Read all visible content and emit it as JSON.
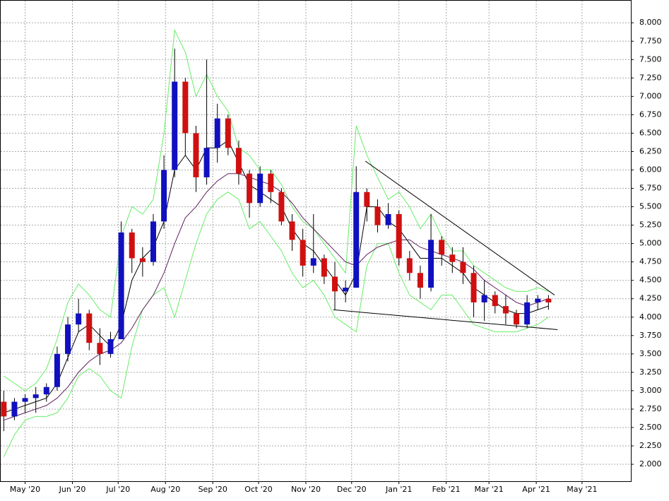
{
  "chart_data": {
    "type": "candlestick",
    "x": [
      -14,
      -7,
      0,
      7,
      14,
      21,
      28,
      35,
      42,
      49,
      56,
      63,
      70,
      77,
      84,
      91,
      98,
      105,
      112,
      119,
      126,
      133,
      140,
      147,
      154,
      161,
      168,
      175,
      182,
      189,
      196,
      203,
      210,
      217,
      224,
      231,
      238,
      245,
      252,
      259,
      266,
      273,
      280,
      287,
      294,
      301,
      308,
      315,
      322,
      329,
      336,
      343
    ],
    "open": [
      2.85,
      2.65,
      2.85,
      2.9,
      2.95,
      3.05,
      3.5,
      3.9,
      4.05,
      3.65,
      3.5,
      3.7,
      5.15,
      4.8,
      4.75,
      5.3,
      6.0,
      7.2,
      6.5,
      5.9,
      6.3,
      6.7,
      6.3,
      5.95,
      5.55,
      5.95,
      5.7,
      5.3,
      5.05,
      4.7,
      4.8,
      4.55,
      4.35,
      4.4,
      5.7,
      5.5,
      5.25,
      5.4,
      4.8,
      4.6,
      4.4,
      5.05,
      4.85,
      4.75,
      4.6,
      4.2,
      4.3,
      4.15,
      4.05,
      3.9,
      4.2,
      4.25
    ],
    "high": [
      3.0,
      2.9,
      2.95,
      3.05,
      3.1,
      3.6,
      4.0,
      4.25,
      4.1,
      3.85,
      3.8,
      5.3,
      5.2,
      4.95,
      5.4,
      6.2,
      7.65,
      7.25,
      6.6,
      7.5,
      6.9,
      6.75,
      6.4,
      6.0,
      6.05,
      6.0,
      5.75,
      5.4,
      5.2,
      5.4,
      4.85,
      4.75,
      4.5,
      6.05,
      5.75,
      5.6,
      5.55,
      5.45,
      4.9,
      4.7,
      5.4,
      5.1,
      4.95,
      4.95,
      4.7,
      4.5,
      4.35,
      4.3,
      4.1,
      4.3,
      4.3,
      4.3
    ],
    "low": [
      2.45,
      2.6,
      2.7,
      2.7,
      2.85,
      3.0,
      3.4,
      3.8,
      3.55,
      3.35,
      3.45,
      3.7,
      4.6,
      4.55,
      4.7,
      5.2,
      5.9,
      6.2,
      5.7,
      5.8,
      6.1,
      6.2,
      5.8,
      5.35,
      5.5,
      5.55,
      5.25,
      4.9,
      4.55,
      4.6,
      4.45,
      4.1,
      4.2,
      4.4,
      5.3,
      5.15,
      5.2,
      4.7,
      4.5,
      4.25,
      4.35,
      4.7,
      4.6,
      4.45,
      4.0,
      3.95,
      4.05,
      3.9,
      3.85,
      3.85,
      4.1,
      4.1
    ],
    "close": [
      2.65,
      2.85,
      2.9,
      2.95,
      3.05,
      3.5,
      3.9,
      4.05,
      3.65,
      3.5,
      3.7,
      5.15,
      4.8,
      4.75,
      5.3,
      6.0,
      7.2,
      6.5,
      5.9,
      6.3,
      6.7,
      6.3,
      5.95,
      5.55,
      5.95,
      5.7,
      5.3,
      5.05,
      4.7,
      4.8,
      4.55,
      4.35,
      4.4,
      5.7,
      5.5,
      5.25,
      5.4,
      4.8,
      4.6,
      4.4,
      5.05,
      4.85,
      4.75,
      4.6,
      4.2,
      4.3,
      4.15,
      4.05,
      3.9,
      4.2,
      4.25,
      4.2
    ],
    "up_color": "#1010c0",
    "down_color": "#d01010",
    "overlays": [
      {
        "color": "#66ee66",
        "values": [
          3.2,
          3.1,
          3.0,
          3.1,
          3.3,
          3.7,
          4.2,
          4.45,
          4.3,
          4.1,
          4.0,
          5.1,
          5.5,
          5.4,
          5.6,
          6.5,
          7.9,
          7.6,
          7.0,
          7.3,
          7.0,
          6.8,
          6.3,
          6.2,
          6.0,
          6.0,
          5.8,
          5.5,
          5.3,
          5.2,
          5.0,
          4.8,
          4.6,
          6.6,
          6.2,
          5.9,
          5.6,
          5.7,
          5.5,
          5.2,
          5.4,
          5.1,
          4.9,
          4.9,
          4.7,
          4.6,
          4.5,
          4.4,
          4.35,
          4.35,
          4.4,
          4.35
        ]
      },
      {
        "color": "#66ee66",
        "values": [
          2.1,
          2.4,
          2.6,
          2.65,
          2.65,
          2.7,
          2.9,
          3.2,
          3.3,
          3.2,
          3.0,
          2.9,
          3.6,
          4.1,
          4.3,
          4.4,
          4.0,
          4.5,
          5.0,
          5.4,
          5.6,
          5.7,
          5.6,
          5.2,
          5.3,
          5.1,
          4.9,
          4.6,
          4.4,
          4.5,
          4.3,
          4.0,
          3.9,
          3.8,
          4.7,
          5.0,
          5.0,
          4.6,
          4.3,
          4.2,
          4.1,
          4.3,
          4.3,
          4.1,
          3.9,
          3.85,
          3.8,
          3.8,
          3.8,
          3.85,
          3.9,
          4.0
        ]
      },
      {
        "color": "#000000",
        "values": [
          2.7,
          2.75,
          2.8,
          2.85,
          2.9,
          3.1,
          3.45,
          3.8,
          3.9,
          3.75,
          3.6,
          3.9,
          4.5,
          4.8,
          4.95,
          5.3,
          6.0,
          6.2,
          6.0,
          6.3,
          6.3,
          6.4,
          6.1,
          5.8,
          5.7,
          5.6,
          5.5,
          5.2,
          5.0,
          4.9,
          4.7,
          4.5,
          4.3,
          4.6,
          5.5,
          5.5,
          5.3,
          5.2,
          5.0,
          4.8,
          4.8,
          4.8,
          4.7,
          4.6,
          4.4,
          4.3,
          4.2,
          4.1,
          4.05,
          4.05,
          4.1,
          4.15
        ]
      },
      {
        "color": "#602060",
        "values": [
          2.6,
          2.65,
          2.7,
          2.75,
          2.8,
          2.9,
          3.05,
          3.25,
          3.4,
          3.5,
          3.55,
          3.65,
          3.85,
          4.1,
          4.3,
          4.6,
          5.0,
          5.35,
          5.5,
          5.7,
          5.85,
          5.95,
          5.95,
          5.9,
          5.85,
          5.8,
          5.7,
          5.55,
          5.35,
          5.2,
          5.05,
          4.9,
          4.75,
          4.7,
          4.85,
          4.95,
          5.0,
          5.05,
          5.05,
          4.95,
          4.9,
          4.85,
          4.8,
          4.75,
          4.65,
          4.5,
          4.4,
          4.3,
          4.2,
          4.15,
          4.2,
          4.25
        ]
      }
    ],
    "trendlines": [
      {
        "x": [
          223,
          347
        ],
        "y": [
          6.12,
          4.3
        ]
      },
      {
        "x": [
          202,
          349
        ],
        "y": [
          4.1,
          3.83
        ]
      }
    ],
    "xlim": [
      -16,
      397
    ],
    "ylim": [
      1.77,
      8.3
    ],
    "xticks": [
      {
        "value": 0,
        "label": "May '20"
      },
      {
        "value": 31,
        "label": "Jun '20"
      },
      {
        "value": 61,
        "label": "Jul '20"
      },
      {
        "value": 92,
        "label": "Aug '20"
      },
      {
        "value": 123,
        "label": "Sep '20"
      },
      {
        "value": 153,
        "label": "Oct '20"
      },
      {
        "value": 184,
        "label": "Nov '20"
      },
      {
        "value": 214,
        "label": "Dec '20"
      },
      {
        "value": 245,
        "label": "Jan '21"
      },
      {
        "value": 276,
        "label": "Feb '21"
      },
      {
        "value": 304,
        "label": "Mar '21"
      },
      {
        "value": 335,
        "label": "Apr '21"
      },
      {
        "value": 365,
        "label": "May '21"
      }
    ],
    "yticks": [
      {
        "value": 2,
        "label": "2.000"
      },
      {
        "value": 2.25,
        "label": "2.250"
      },
      {
        "value": 2.5,
        "label": "2.500"
      },
      {
        "value": 2.75,
        "label": "2.750"
      },
      {
        "value": 3,
        "label": "3.000"
      },
      {
        "value": 3.25,
        "label": "3.250"
      },
      {
        "value": 3.5,
        "label": "3.500"
      },
      {
        "value": 3.75,
        "label": "3.750"
      },
      {
        "value": 4,
        "label": "4.000"
      },
      {
        "value": 4.25,
        "label": "4.250"
      },
      {
        "value": 4.5,
        "label": "4.500"
      },
      {
        "value": 4.75,
        "label": "4.750"
      },
      {
        "value": 5,
        "label": "5.000"
      },
      {
        "value": 5.25,
        "label": "5.250"
      },
      {
        "value": 5.5,
        "label": "5.500"
      },
      {
        "value": 5.75,
        "label": "5.750"
      },
      {
        "value": 6,
        "label": "6.000"
      },
      {
        "value": 6.25,
        "label": "6.250"
      },
      {
        "value": 6.5,
        "label": "6.500"
      },
      {
        "value": 6.75,
        "label": "6.750"
      },
      {
        "value": 7,
        "label": "7.000"
      },
      {
        "value": 7.25,
        "label": "7.250"
      },
      {
        "value": 7.5,
        "label": "7.500"
      },
      {
        "value": 7.75,
        "label": "7.750"
      },
      {
        "value": 8,
        "label": "8.000"
      }
    ],
    "grid": true
  }
}
